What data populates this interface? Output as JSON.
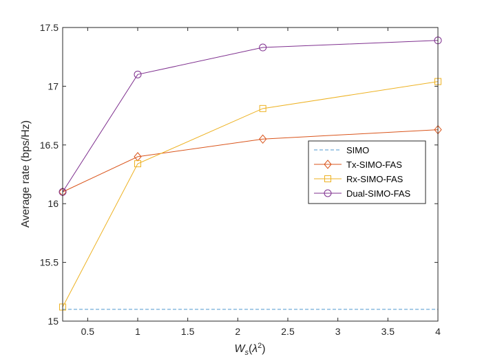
{
  "chart_data": {
    "type": "line",
    "title": "",
    "xlabel": "W_s(λ²)",
    "ylabel": "Average rate (bps/Hz)",
    "xlim": [
      0.25,
      4
    ],
    "ylim": [
      15,
      17.5
    ],
    "xticks": [
      "0.5",
      "1",
      "1.5",
      "2",
      "2.5",
      "3",
      "3.5",
      "4"
    ],
    "yticks": [
      "15",
      "15.5",
      "16",
      "16.5",
      "17",
      "17.5"
    ],
    "grid": false,
    "legend_position": "center-right",
    "x": [
      0.25,
      1,
      2.25,
      4
    ],
    "series": [
      {
        "name": "SIMO",
        "color": "#4d97cf",
        "style": "dashed",
        "marker": "none",
        "values": [
          15.1,
          15.1,
          15.1,
          15.1
        ]
      },
      {
        "name": "Tx-SIMO-FAS",
        "color": "#d95319",
        "style": "solid",
        "marker": "diamond",
        "values": [
          16.1,
          16.4,
          16.55,
          16.63
        ]
      },
      {
        "name": "Rx-SIMO-FAS",
        "color": "#edb120",
        "style": "solid",
        "marker": "square",
        "values": [
          15.12,
          16.34,
          16.81,
          17.04
        ]
      },
      {
        "name": "Dual-SIMO-FAS",
        "color": "#7e2f8e",
        "style": "solid",
        "marker": "circle",
        "values": [
          16.1,
          17.1,
          17.33,
          17.39
        ]
      }
    ]
  }
}
